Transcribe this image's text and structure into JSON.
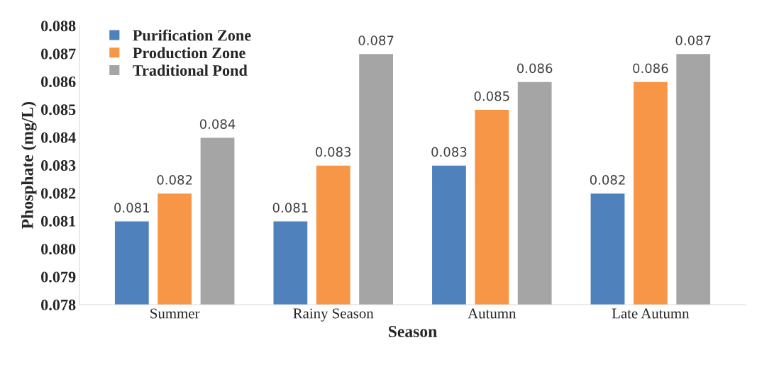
{
  "chart_data": {
    "type": "bar",
    "xlabel": "Season",
    "ylabel": "Phosphate (mg/L)",
    "categories": [
      "Summer",
      "Rainy Season",
      "Autumn",
      "Late Autumn"
    ],
    "series": [
      {
        "name": "Purification Zone",
        "color": "#4f81bd",
        "values": [
          0.081,
          0.081,
          0.083,
          0.082
        ]
      },
      {
        "name": "Production Zone",
        "color": "#f79646",
        "values": [
          0.082,
          0.083,
          0.085,
          0.086
        ]
      },
      {
        "name": "Traditional Pond",
        "color": "#a5a5a5",
        "values": [
          0.084,
          0.087,
          0.086,
          0.087
        ]
      }
    ],
    "ylim": [
      0.078,
      0.088
    ],
    "yticks": [
      0.078,
      0.079,
      {
        "value": 0.08,
        "label": "0.080"
      },
      0.081,
      0.082,
      0.083,
      0.084,
      0.085,
      0.086,
      0.087,
      0.088
    ],
    "data_labels": true,
    "legend": "top left",
    "grid": false
  }
}
